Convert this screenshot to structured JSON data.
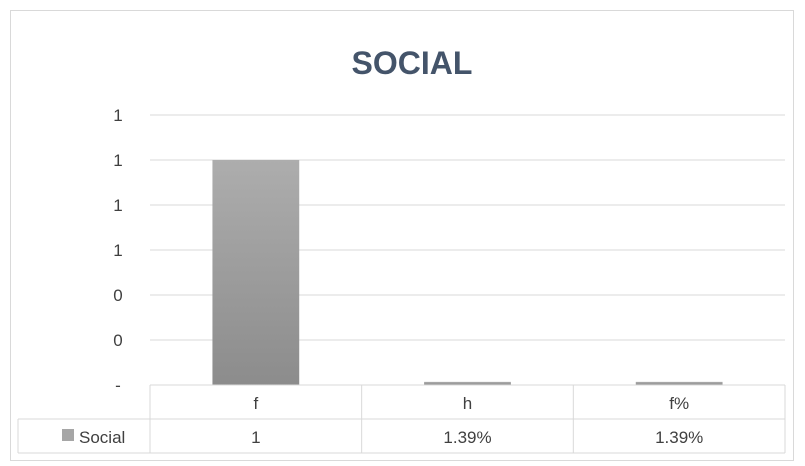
{
  "chart_data": {
    "type": "bar",
    "title": "SOCIAL",
    "categories": [
      "f",
      "h",
      "f%"
    ],
    "series": [
      {
        "name": "Social",
        "values": [
          1,
          0.0139,
          0.0139
        ],
        "labels": [
          "1",
          "1.39%",
          "1.39%"
        ],
        "color": "#a6a6a6"
      }
    ],
    "ylim": [
      0,
      1.2
    ],
    "y_ticks": [
      "-",
      "0",
      "0",
      "1",
      "1",
      "1",
      "1"
    ],
    "grid": true,
    "legend": "data-table",
    "data_table": true
  }
}
